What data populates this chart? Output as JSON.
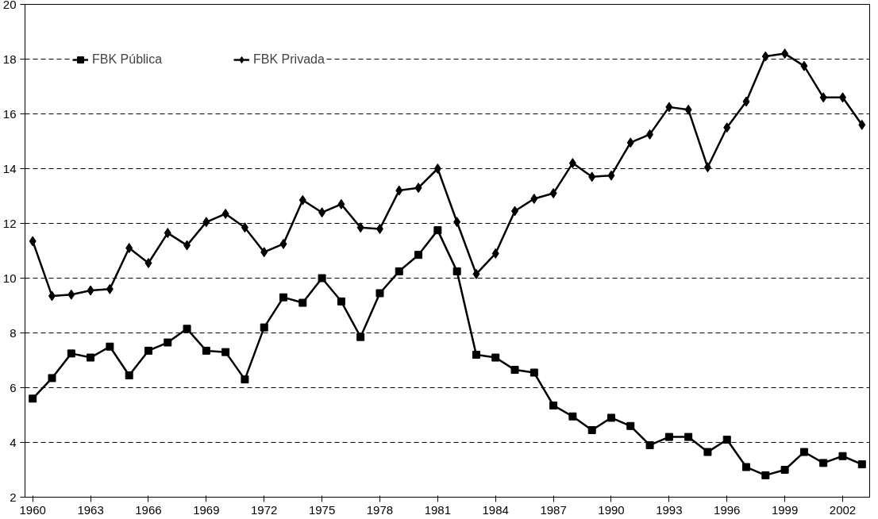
{
  "chart_data": {
    "type": "line",
    "x": [
      1960,
      1961,
      1962,
      1963,
      1964,
      1965,
      1966,
      1967,
      1968,
      1969,
      1970,
      1971,
      1972,
      1973,
      1974,
      1975,
      1976,
      1977,
      1978,
      1979,
      1980,
      1981,
      1982,
      1983,
      1984,
      1985,
      1986,
      1987,
      1988,
      1989,
      1990,
      1991,
      1992,
      1993,
      1994,
      1995,
      1996,
      1997,
      1998,
      1999,
      2000,
      2001,
      2002,
      2003
    ],
    "series": [
      {
        "name": "FBK Pública",
        "color": "#000000",
        "marker": "square",
        "values": [
          5.6,
          6.35,
          7.25,
          7.1,
          7.5,
          6.45,
          7.35,
          7.65,
          8.15,
          7.35,
          7.3,
          6.3,
          8.2,
          9.3,
          9.1,
          10.0,
          9.15,
          7.85,
          9.45,
          10.25,
          10.85,
          11.75,
          10.25,
          7.2,
          7.1,
          6.65,
          6.55,
          5.35,
          4.95,
          4.45,
          4.9,
          4.6,
          3.9,
          4.2,
          4.2,
          3.65,
          4.1,
          3.1,
          2.8,
          3.0,
          3.65,
          3.25,
          3.5,
          3.2
        ]
      },
      {
        "name": "FBK Privada",
        "color": "#000000",
        "marker": "diamond",
        "values": [
          11.35,
          9.35,
          9.4,
          9.55,
          9.6,
          11.1,
          10.55,
          11.65,
          11.2,
          12.05,
          12.35,
          11.85,
          10.95,
          11.25,
          12.85,
          12.4,
          12.7,
          11.85,
          11.8,
          13.2,
          13.3,
          14.0,
          12.05,
          10.15,
          10.9,
          12.45,
          12.9,
          13.1,
          14.2,
          13.7,
          13.75,
          14.95,
          15.25,
          16.25,
          16.15,
          14.05,
          15.5,
          16.45,
          18.1,
          18.2,
          17.75,
          16.6,
          16.6,
          15.6
        ]
      }
    ],
    "xlim": [
      1959.6,
      2003.4
    ],
    "xticks": [
      1960,
      1963,
      1966,
      1969,
      1972,
      1975,
      1978,
      1981,
      1984,
      1987,
      1990,
      1993,
      1996,
      1999,
      2002
    ],
    "ylim": [
      2,
      20
    ],
    "yticks": [
      2,
      4,
      6,
      8,
      10,
      12,
      14,
      16,
      18,
      20
    ],
    "grid": "y",
    "line_style": "solid",
    "legend": "top left"
  }
}
